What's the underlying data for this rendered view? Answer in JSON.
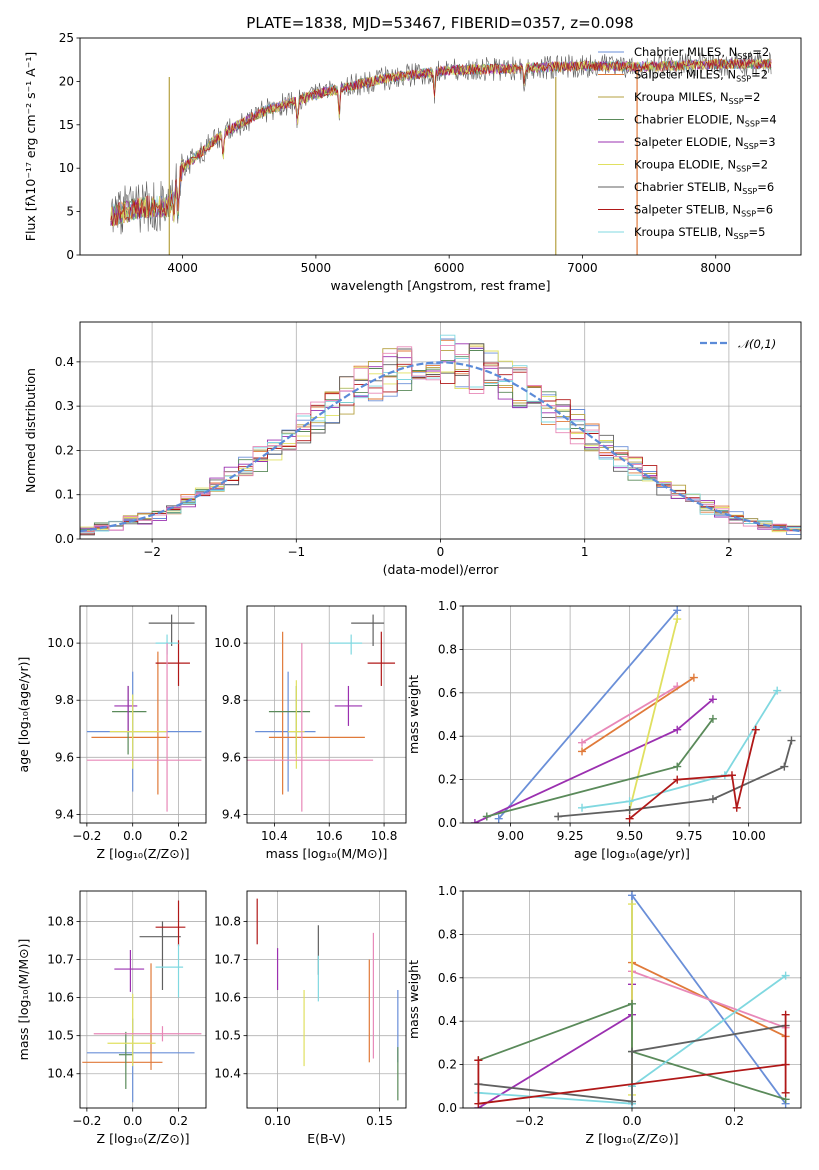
{
  "colors": [
    "#6a8fd8",
    "#e07a3a",
    "#b5a040",
    "#5a8a5a",
    "#9b30b0",
    "#e0e060",
    "#606060",
    "#b01818",
    "#80d8e0",
    "#e888b8"
  ],
  "chart_data": [
    {
      "id": "spectrum",
      "type": "line",
      "title": "PLATE=1838, MJD=53467, FIBERID=0357, z=0.098",
      "xlabel": "wavelength [Angstrom, rest frame]",
      "ylabel": "Flux [fλ10⁻¹⁷ erg cm⁻² s⁻¹ A⁻¹]",
      "xlim": [
        3230,
        8640
      ],
      "ylim": [
        0,
        25
      ],
      "xticks": [
        4000,
        5000,
        6000,
        7000,
        8000
      ],
      "yticks": [
        0,
        5,
        10,
        15,
        20,
        25
      ],
      "x_range": [
        3460,
        8420
      ],
      "shape": [
        [
          3460,
          4.5
        ],
        [
          3700,
          5.5
        ],
        [
          3900,
          5.5
        ],
        [
          4000,
          10
        ],
        [
          4300,
          14
        ],
        [
          4600,
          16.5
        ],
        [
          5000,
          18.5
        ],
        [
          5500,
          20.3
        ],
        [
          6000,
          21.3
        ],
        [
          6500,
          21.5
        ],
        [
          7000,
          21.8
        ],
        [
          7500,
          21.7
        ],
        [
          8000,
          22
        ],
        [
          8420,
          22
        ]
      ],
      "dips": [
        [
          4861,
          0.85
        ],
        [
          5175,
          0.85
        ],
        [
          5890,
          0.88
        ],
        [
          6563,
          0.92
        ],
        [
          3934,
          0.6
        ],
        [
          3968,
          0.6
        ],
        [
          4304,
          0.8
        ]
      ],
      "drops": [
        [
          3900,
          0
        ],
        [
          6800,
          7
        ],
        [
          7410,
          8
        ]
      ],
      "grid": false,
      "legend_position": "upper right",
      "series": [
        {
          "name": "Chabrier MILES, N",
          "ssp": "2",
          "color": "#6a8fd8"
        },
        {
          "name": "Salpeter MILES, N",
          "ssp": "2",
          "color": "#e07a3a"
        },
        {
          "name": "Kroupa MILES, N",
          "ssp": "2",
          "color": "#b5a040"
        },
        {
          "name": "Chabrier ELODIE, N",
          "ssp": "4",
          "color": "#5a8a5a"
        },
        {
          "name": "Salpeter ELODIE, N",
          "ssp": "3",
          "color": "#9b30b0"
        },
        {
          "name": "Kroupa ELODIE, N",
          "ssp": "2",
          "color": "#e0e060"
        },
        {
          "name": "Chabrier STELIB, N",
          "ssp": "6",
          "color": "#606060"
        },
        {
          "name": "Salpeter STELIB, N",
          "ssp": "6",
          "color": "#b01818"
        },
        {
          "name": "Kroupa STELIB, N",
          "ssp": "5",
          "color": "#80d8e0"
        }
      ],
      "legend_sub": "SSP"
    },
    {
      "id": "residuals",
      "type": "histogram",
      "xlabel": "(data-model)/error",
      "ylabel": "Normed distribution",
      "xlim": [
        -2.5,
        2.5
      ],
      "ylim": [
        0,
        0.49
      ],
      "xticks": [
        -2,
        -1,
        0,
        1,
        2
      ],
      "yticks": [
        0.0,
        0.1,
        0.2,
        0.3,
        0.4
      ],
      "grid": true,
      "bin_width": 0.1,
      "legend": "𝒩(0,1)",
      "legend_position": "upper right",
      "normal_curve": {
        "mean": 0,
        "sigma": 1,
        "color": "#5b8bd8"
      }
    },
    {
      "id": "age-vs-Z",
      "type": "errorbar",
      "xlabel": "Z [log₁₀(Z/Z⊙)]",
      "ylabel": "age  [log₁₀(age/yr)]",
      "xlim": [
        -0.23,
        0.32
      ],
      "ylim": [
        9.37,
        10.13
      ],
      "xticks": [
        -0.2,
        0.0,
        0.2
      ],
      "yticks": [
        9.4,
        9.6,
        9.8,
        10.0
      ],
      "grid": true,
      "points": [
        {
          "x": 0.0,
          "y": 9.69,
          "xerr": [
            0.2,
            0.3
          ],
          "yerr": [
            0.21,
            0.21
          ],
          "c": "#6a8fd8"
        },
        {
          "x": 0.11,
          "y": 9.67,
          "xerr": [
            0.29,
            0.05
          ],
          "yerr": [
            0.2,
            0.3
          ],
          "c": "#e07a3a"
        },
        {
          "x": -0.02,
          "y": 9.76,
          "xerr": [
            0.07,
            0.08
          ],
          "yerr": [
            0.15,
            0.09
          ],
          "c": "#5a8a5a"
        },
        {
          "x": -0.02,
          "y": 9.78,
          "xerr": [
            0.06,
            0.04
          ],
          "yerr": [
            0.09,
            0.07
          ],
          "c": "#9b30b0"
        },
        {
          "x": 0.0,
          "y": 9.69,
          "xerr": [
            0.1,
            0.15
          ],
          "yerr": [
            0.13,
            0.13
          ],
          "c": "#e0e060"
        },
        {
          "x": 0.17,
          "y": 10.07,
          "xerr": [
            0.1,
            0.1
          ],
          "yerr": [
            0.08,
            0.03
          ],
          "c": "#606060"
        },
        {
          "x": 0.2,
          "y": 9.93,
          "xerr": [
            0.1,
            0.05
          ],
          "yerr": [
            0.08,
            0.08
          ],
          "c": "#b01818"
        },
        {
          "x": 0.15,
          "y": 10.0,
          "xerr": [
            0.05,
            0.05
          ],
          "yerr": [
            0.04,
            0.03
          ],
          "c": "#80d8e0"
        },
        {
          "x": 0.15,
          "y": 9.59,
          "xerr": [
            0.35,
            0.15
          ],
          "yerr": [
            0.18,
            0.41
          ],
          "c": "#e888b8"
        }
      ]
    },
    {
      "id": "age-vs-mass",
      "type": "errorbar",
      "xlabel": "mass [log₁₀(M/M⊙)]",
      "ylabel": "",
      "xlim": [
        10.3,
        10.88
      ],
      "ylim": [
        9.37,
        10.13
      ],
      "xticks": [
        10.4,
        10.6,
        10.8
      ],
      "yticks": [
        9.4,
        9.6,
        9.8,
        10.0
      ],
      "grid": true,
      "points": [
        {
          "x": 10.45,
          "y": 9.69,
          "xerr": [
            0.12,
            0.1
          ],
          "yerr": [
            0.21,
            0.21
          ],
          "c": "#6a8fd8"
        },
        {
          "x": 10.43,
          "y": 9.67,
          "xerr": [
            0.05,
            0.3
          ],
          "yerr": [
            0.2,
            0.37
          ],
          "c": "#e07a3a"
        },
        {
          "x": 10.48,
          "y": 9.76,
          "xerr": [
            0.1,
            0.05
          ],
          "yerr": [
            0.15,
            0.09
          ],
          "c": "#5a8a5a"
        },
        {
          "x": 10.67,
          "y": 9.78,
          "xerr": [
            0.05,
            0.05
          ],
          "yerr": [
            0.07,
            0.07
          ],
          "c": "#9b30b0"
        },
        {
          "x": 10.48,
          "y": 9.69,
          "xerr": [
            0.03,
            0.03
          ],
          "yerr": [
            0.13,
            0.18
          ],
          "c": "#e0e060"
        },
        {
          "x": 10.76,
          "y": 10.07,
          "xerr": [
            0.08,
            0.04
          ],
          "yerr": [
            0.08,
            0.03
          ],
          "c": "#606060"
        },
        {
          "x": 10.79,
          "y": 9.93,
          "xerr": [
            0.05,
            0.05
          ],
          "yerr": [
            0.08,
            0.11
          ],
          "c": "#b01818"
        },
        {
          "x": 10.68,
          "y": 10.0,
          "xerr": [
            0.08,
            0.04
          ],
          "yerr": [
            0.04,
            0.03
          ],
          "c": "#80d8e0"
        },
        {
          "x": 10.5,
          "y": 9.59,
          "xerr": [
            0.2,
            0.26
          ],
          "yerr": [
            0.18,
            0.41
          ],
          "c": "#e888b8"
        }
      ]
    },
    {
      "id": "massweight-vs-age",
      "type": "line",
      "xlabel": "age  [log₁₀(age/yr)]",
      "ylabel": "mass weight",
      "xlim": [
        8.8,
        10.22
      ],
      "ylim": [
        0,
        1
      ],
      "xticks": [
        9.0,
        9.25,
        9.5,
        9.75,
        10.0
      ],
      "xticklabels": [
        "9.00",
        "9.25",
        "9.50",
        "9.75",
        "10.00"
      ],
      "yticks": [
        0.0,
        0.2,
        0.4,
        0.6,
        0.8,
        1.0
      ],
      "grid": true,
      "series": [
        {
          "c": "#6a8fd8",
          "pts": [
            [
              8.95,
              0.02
            ],
            [
              9.7,
              0.98
            ]
          ]
        },
        {
          "c": "#e888b8",
          "pts": [
            [
              9.3,
              0.37
            ],
            [
              9.7,
              0.63
            ]
          ]
        },
        {
          "c": "#e07a3a",
          "pts": [
            [
              9.3,
              0.33
            ],
            [
              9.77,
              0.67
            ]
          ]
        },
        {
          "c": "#9b30b0",
          "pts": [
            [
              8.85,
              0.0
            ],
            [
              9.7,
              0.43
            ],
            [
              9.85,
              0.57
            ]
          ]
        },
        {
          "c": "#e0e060",
          "pts": [
            [
              9.5,
              0.06
            ],
            [
              9.7,
              0.94
            ]
          ]
        },
        {
          "c": "#5a8a5a",
          "pts": [
            [
              8.9,
              0.03
            ],
            [
              9.7,
              0.26
            ],
            [
              9.85,
              0.48
            ]
          ]
        },
        {
          "c": "#80d8e0",
          "pts": [
            [
              9.3,
              0.07
            ],
            [
              9.5,
              0.1
            ],
            [
              9.9,
              0.22
            ],
            [
              10.12,
              0.61
            ]
          ]
        },
        {
          "c": "#606060",
          "pts": [
            [
              9.2,
              0.03
            ],
            [
              9.5,
              0.06
            ],
            [
              9.85,
              0.11
            ],
            [
              10.15,
              0.26
            ],
            [
              10.18,
              0.38
            ]
          ]
        },
        {
          "c": "#b01818",
          "pts": [
            [
              9.5,
              0.02
            ],
            [
              9.7,
              0.2
            ],
            [
              9.93,
              0.22
            ],
            [
              9.95,
              0.07
            ],
            [
              10.03,
              0.43
            ]
          ]
        }
      ]
    },
    {
      "id": "mass-vs-Z",
      "type": "errorbar",
      "xlabel": "Z [log₁₀(Z/Z⊙)]",
      "ylabel": "mass [log₁₀(M/M⊙)]",
      "xlim": [
        -0.23,
        0.32
      ],
      "ylim": [
        10.31,
        10.88
      ],
      "xticks": [
        -0.2,
        0.0,
        0.2
      ],
      "yticks": [
        10.4,
        10.5,
        10.6,
        10.7,
        10.8
      ],
      "grid": true,
      "points": [
        {
          "x": 0.0,
          "y": 10.455,
          "xerr": [
            0.2,
            0.27
          ],
          "yerr": [
            0.13,
            0.09
          ],
          "c": "#6a8fd8"
        },
        {
          "x": 0.08,
          "y": 10.43,
          "xerr": [
            0.3,
            0.05
          ],
          "yerr": [
            0.02,
            0.26
          ],
          "c": "#e07a3a"
        },
        {
          "x": -0.03,
          "y": 10.45,
          "xerr": [
            0.03,
            0.03
          ],
          "yerr": [
            0.09,
            0.06
          ],
          "c": "#5a8a5a"
        },
        {
          "x": -0.01,
          "y": 10.675,
          "xerr": [
            0.07,
            0.06
          ],
          "yerr": [
            0.06,
            0.05
          ],
          "c": "#9b30b0"
        },
        {
          "x": 0.0,
          "y": 10.48,
          "xerr": [
            0.11,
            0.1
          ],
          "yerr": [
            0.06,
            0.13
          ],
          "c": "#e0e060"
        },
        {
          "x": 0.13,
          "y": 10.76,
          "xerr": [
            0.1,
            0.08
          ],
          "yerr": [
            0.14,
            0.04
          ],
          "c": "#606060"
        },
        {
          "x": 0.2,
          "y": 10.785,
          "xerr": [
            0.1,
            0.03
          ],
          "yerr": [
            0.05,
            0.07
          ],
          "c": "#b01818"
        },
        {
          "x": 0.2,
          "y": 10.68,
          "xerr": [
            0.1,
            0.02
          ],
          "yerr": [
            0.08,
            0.06
          ],
          "c": "#80d8e0"
        },
        {
          "x": 0.13,
          "y": 10.505,
          "xerr": [
            0.3,
            0.17
          ],
          "yerr": [
            0.02,
            0.02
          ],
          "c": "#e888b8"
        }
      ]
    },
    {
      "id": "mass-vs-EBV",
      "type": "errorbar",
      "xlabel": "E(B-V)",
      "ylabel": "",
      "xlim": [
        0.085,
        0.163
      ],
      "ylim": [
        10.31,
        10.88
      ],
      "xticks": [
        0.1,
        0.15
      ],
      "xticklabels": [
        "0.10",
        "0.15"
      ],
      "yticks": [
        10.4,
        10.5,
        10.6,
        10.7,
        10.8
      ],
      "grid": true,
      "points": [
        {
          "x": 0.159,
          "y": 10.52,
          "yerr": [
            0.09,
            0.1
          ],
          "c": "#6a8fd8"
        },
        {
          "x": 0.145,
          "y": 10.57,
          "yerr": [
            0.14,
            0.13
          ],
          "c": "#e07a3a"
        },
        {
          "x": 0.159,
          "y": 10.41,
          "yerr": [
            0.08,
            0.06
          ],
          "c": "#5a8a5a"
        },
        {
          "x": 0.1,
          "y": 10.67,
          "yerr": [
            0.05,
            0.06
          ],
          "c": "#9b30b0"
        },
        {
          "x": 0.113,
          "y": 10.52,
          "yerr": [
            0.1,
            0.1
          ],
          "c": "#e0e060"
        },
        {
          "x": 0.12,
          "y": 10.72,
          "yerr": [
            0.06,
            0.07
          ],
          "c": "#606060"
        },
        {
          "x": 0.09,
          "y": 10.8,
          "yerr": [
            0.06,
            0.06
          ],
          "c": "#b01818"
        },
        {
          "x": 0.12,
          "y": 10.65,
          "yerr": [
            0.06,
            0.06
          ],
          "c": "#80d8e0"
        },
        {
          "x": 0.147,
          "y": 10.6,
          "yerr": [
            0.16,
            0.17
          ],
          "c": "#e888b8"
        }
      ]
    },
    {
      "id": "massweight-vs-Z",
      "type": "line",
      "xlabel": "Z [log₁₀(Z/Z⊙)]",
      "ylabel": "mass weight",
      "xlim": [
        -0.33,
        0.33
      ],
      "ylim": [
        0,
        1
      ],
      "xticks": [
        -0.2,
        0.0,
        0.2
      ],
      "yticks": [
        0.0,
        0.2,
        0.4,
        0.6,
        0.8,
        1.0
      ],
      "grid": true,
      "series": [
        {
          "c": "#6a8fd8",
          "pts": [
            [
              0.0,
              0.02
            ],
            [
              0.0,
              0.98
            ],
            [
              0.3,
              0.02
            ]
          ]
        },
        {
          "c": "#e07a3a",
          "pts": [
            [
              0.0,
              0.67
            ],
            [
              0.3,
              0.33
            ]
          ]
        },
        {
          "c": "#e888b8",
          "pts": [
            [
              0.0,
              0.63
            ],
            [
              0.3,
              0.37
            ]
          ]
        },
        {
          "c": "#9b30b0",
          "pts": [
            [
              -0.3,
              0.0
            ],
            [
              0.0,
              0.43
            ],
            [
              0.0,
              0.57
            ]
          ]
        },
        {
          "c": "#e0e060",
          "pts": [
            [
              0.0,
              0.06
            ],
            [
              0.0,
              0.94
            ]
          ]
        },
        {
          "c": "#5a8a5a",
          "pts": [
            [
              -0.3,
              0.22
            ],
            [
              0.0,
              0.48
            ],
            [
              0.0,
              0.26
            ],
            [
              0.3,
              0.04
            ]
          ]
        },
        {
          "c": "#80d8e0",
          "pts": [
            [
              -0.3,
              0.07
            ],
            [
              0.0,
              0.02
            ],
            [
              0.0,
              0.1
            ],
            [
              0.3,
              0.61
            ]
          ]
        },
        {
          "c": "#606060",
          "pts": [
            [
              -0.3,
              0.11
            ],
            [
              0.0,
              0.03
            ],
            [
              0.0,
              0.26
            ],
            [
              0.3,
              0.38
            ]
          ]
        },
        {
          "c": "#b01818",
          "pts": [
            [
              -0.3,
              0.22
            ],
            [
              -0.3,
              0.02
            ],
            [
              0.3,
              0.2
            ],
            [
              0.3,
              0.43
            ],
            [
              0.3,
              0.07
            ]
          ]
        }
      ]
    }
  ]
}
